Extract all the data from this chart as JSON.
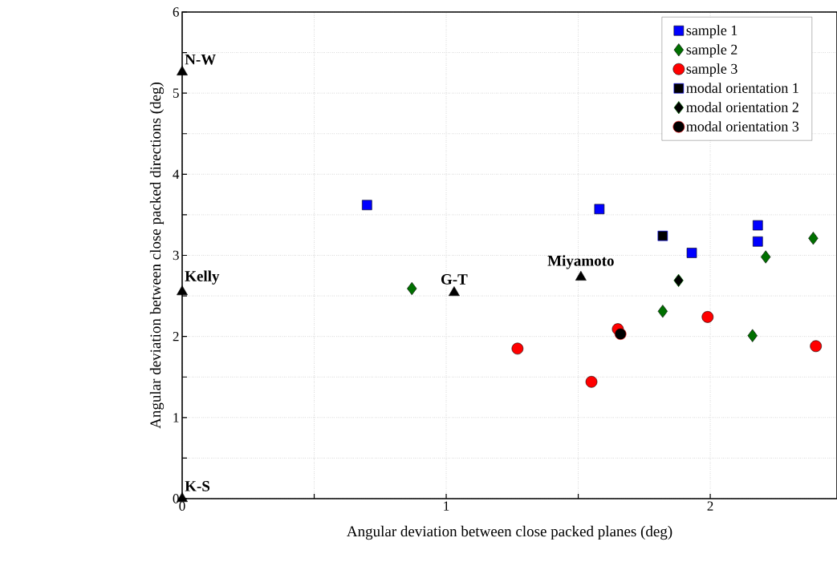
{
  "chart_data": {
    "type": "scatter",
    "xlabel": "Angular deviation between close packed planes (deg)",
    "ylabel": "Angular deviation between close packed directions (deg)",
    "xlim": [
      0,
      2.48
    ],
    "ylim": [
      0,
      6
    ],
    "xticks": [
      0,
      {
        "value": 0.5,
        "label": null
      },
      1,
      {
        "value": 1.5,
        "label": null
      },
      2
    ],
    "yticks": [
      0,
      {
        "value": 0.5,
        "label": null
      },
      1,
      {
        "value": 1.5,
        "label": null
      },
      2,
      {
        "value": 2.5,
        "label": null
      },
      3,
      {
        "value": 3.5,
        "label": null
      },
      4,
      {
        "value": 4.5,
        "label": null
      },
      5,
      {
        "value": 5.5,
        "label": null
      },
      6
    ],
    "grid": true,
    "legend": "top right",
    "series": [
      {
        "name": "sample 1",
        "color": "#0000ff",
        "marker": "square",
        "x": [
          0.7,
          1.58,
          1.93,
          2.18,
          2.18
        ],
        "values": [
          3.62,
          3.57,
          3.03,
          3.37,
          3.17
        ]
      },
      {
        "name": "sample 2",
        "color": "#007000",
        "marker": "diamond",
        "x": [
          0.87,
          1.82,
          2.21,
          2.39,
          2.16
        ],
        "values": [
          2.59,
          2.31,
          2.98,
          3.21,
          2.01
        ]
      },
      {
        "name": "sample 3",
        "color": "#ff0000",
        "marker": "circle",
        "x": [
          1.27,
          1.55,
          1.65,
          1.99,
          2.4
        ],
        "values": [
          1.85,
          1.44,
          2.09,
          2.24,
          1.88
        ]
      },
      {
        "name": "modal orientation 1",
        "color": "#000000",
        "marker": "square",
        "x": [
          1.82
        ],
        "values": [
          3.24
        ]
      },
      {
        "name": "modal orientation 2",
        "color": "#000000",
        "marker": "diamond",
        "x": [
          1.88
        ],
        "values": [
          2.69
        ]
      },
      {
        "name": "modal orientation 3",
        "color": "#000000",
        "marker": "circle",
        "x": [
          1.66
        ],
        "values": [
          2.03
        ]
      },
      {
        "color": "#000000",
        "marker": "triangle",
        "x": [
          0,
          0,
          1.03,
          1.51,
          0
        ],
        "values": [
          5.26,
          2.55,
          2.54,
          2.73,
          0
        ]
      }
    ],
    "annotations": [
      {
        "text": "N-W",
        "x": 0,
        "y": 5.26
      },
      {
        "text": "Kelly",
        "x": 0,
        "y": 2.55
      },
      {
        "text": "G-T",
        "x": 1.03,
        "y": 2.54
      },
      {
        "text": "Miyamoto",
        "x": 1.51,
        "y": 2.73
      },
      {
        "text": "K-S",
        "x": 0,
        "y": 0
      }
    ]
  }
}
